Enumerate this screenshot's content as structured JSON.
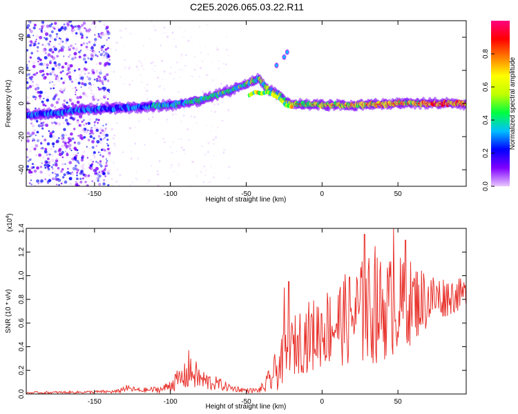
{
  "title": "C2E5.2026.065.03.22.R11",
  "colorbar": {
    "label": "Normalized spectral amplitude",
    "range": [
      0.0,
      1.0
    ],
    "ticks": [
      "0.0",
      "0.2",
      "0.4",
      "0.6",
      "0.8"
    ],
    "colors": [
      "#e8c8ff",
      "#8000ff",
      "#0000ff",
      "#00c0ff",
      "#00ff40",
      "#c0ff00",
      "#ffff00",
      "#ff8000",
      "#ff0000",
      "#ff0080"
    ]
  },
  "chart_data": [
    {
      "type": "heatmap",
      "xlabel": "Height of straight line (km)",
      "ylabel": "Frequency (Hz)",
      "xlim": [
        -195,
        95
      ],
      "ylim": [
        -50,
        50
      ],
      "xticks": [
        -150,
        -100,
        -50,
        0,
        50
      ],
      "yticks": [
        -40,
        -20,
        0,
        20,
        40
      ],
      "ridge": {
        "x": [
          -195,
          -180,
          -160,
          -140,
          -120,
          -100,
          -80,
          -60,
          -50,
          -42,
          -35,
          -28,
          -22,
          0,
          20,
          50,
          95
        ],
        "frequency": [
          -7,
          -6,
          -4,
          -3,
          -2,
          -1,
          2,
          8,
          12,
          15,
          8,
          5,
          0,
          -1,
          -1,
          0,
          0
        ]
      },
      "harmonic": {
        "x": [
          -48,
          -44,
          -40,
          -36,
          -32,
          -28,
          -24,
          -20
        ],
        "frequency": [
          5,
          7,
          6,
          7,
          5,
          3,
          -1,
          -2
        ]
      },
      "outliers": [
        [
          -30,
          23
        ],
        [
          -25,
          28
        ],
        [
          -23,
          31
        ]
      ],
      "noise_band": [
        -195,
        -140
      ]
    },
    {
      "type": "line",
      "xlabel": "Height of straight line (km)",
      "ylabel": "SNR (10 * v/v)",
      "multiplier": "(x10",
      "multiplier_exp": "4",
      "multiplier_close": ")",
      "xlim": [
        -195,
        95
      ],
      "ylim": [
        0.0,
        1.4
      ],
      "xticks": [
        -150,
        -100,
        -50,
        0,
        50
      ],
      "yticks": [
        "0.0",
        "0.2",
        "0.4",
        "0.6",
        "0.8",
        "1.0",
        "1.2",
        "1.4"
      ],
      "color": "#e8302a",
      "envelope": {
        "x": [
          -195,
          -160,
          -135,
          -130,
          -120,
          -105,
          -100,
          -90,
          -85,
          -80,
          -75,
          -70,
          -60,
          -50,
          -42,
          -38,
          -34,
          -30,
          -25,
          -20,
          -15,
          -10,
          -5,
          0,
          10,
          20,
          25,
          30,
          40,
          50,
          60,
          70,
          80,
          95
        ],
        "mean": [
          0.01,
          0.015,
          0.02,
          0.05,
          0.03,
          0.04,
          0.08,
          0.15,
          0.18,
          0.12,
          0.1,
          0.09,
          0.05,
          0.03,
          0.03,
          0.06,
          0.12,
          0.2,
          0.3,
          0.38,
          0.45,
          0.48,
          0.5,
          0.55,
          0.6,
          0.65,
          0.68,
          0.7,
          0.72,
          0.75,
          0.78,
          0.8,
          0.82,
          0.85
        ],
        "amplitude": [
          0.01,
          0.01,
          0.015,
          0.03,
          0.02,
          0.03,
          0.06,
          0.12,
          0.14,
          0.1,
          0.08,
          0.06,
          0.03,
          0.02,
          0.02,
          0.06,
          0.12,
          0.18,
          0.22,
          0.25,
          0.28,
          0.3,
          0.32,
          0.33,
          0.36,
          0.42,
          0.45,
          0.48,
          0.45,
          0.42,
          0.35,
          0.25,
          0.18,
          0.12
        ]
      },
      "peaks": [
        [
          -88,
          0.37
        ],
        [
          28,
          1.35
        ],
        [
          35,
          1.25
        ],
        [
          47,
          1.4
        ],
        [
          55,
          1.3
        ],
        [
          -22,
          0.95
        ],
        [
          -25,
          0.9
        ]
      ]
    }
  ]
}
